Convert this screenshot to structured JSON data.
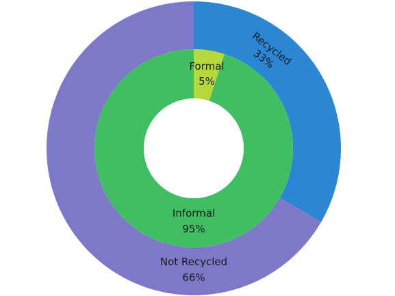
{
  "chart_data": {
    "type": "pie",
    "subtype": "nested-donut",
    "rings": [
      {
        "ring": "outer",
        "slices": [
          {
            "label": "Recycled",
            "value": 33,
            "display": "33%",
            "color": "#2B86D4"
          },
          {
            "label": "Not Recycled",
            "value": 66,
            "display": "66%",
            "color": "#7E78C9"
          }
        ]
      },
      {
        "ring": "inner",
        "slices": [
          {
            "label": "Formal",
            "value": 5,
            "display": "5%",
            "color": "#B5D93A"
          },
          {
            "label": "Informal",
            "value": 95,
            "display": "95%",
            "color": "#40BF62"
          }
        ]
      }
    ],
    "title": "",
    "legend": "none"
  }
}
